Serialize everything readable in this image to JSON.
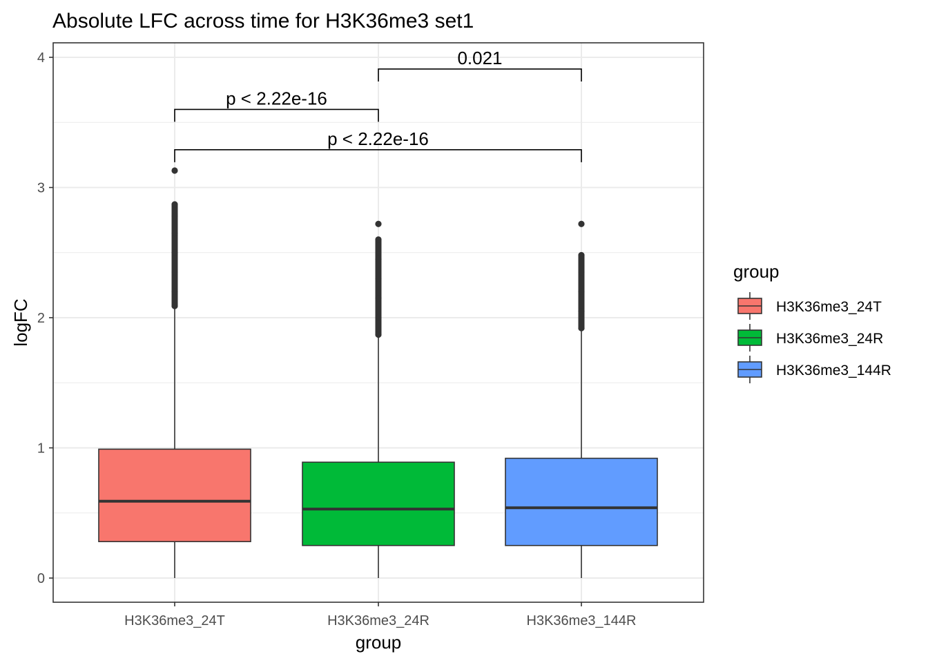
{
  "chart_data": {
    "type": "boxplot",
    "title": "Absolute LFC across time for H3K36me3 set1",
    "xlabel": "group",
    "ylabel": "logFC",
    "ylim": [
      -0.18,
      4.07
    ],
    "yticks": [
      0,
      1,
      2,
      3,
      4
    ],
    "grid": true,
    "legend": {
      "title": "group",
      "position": "right",
      "items": [
        {
          "label": "H3K36me3_24T",
          "color": "#F8766D"
        },
        {
          "label": "H3K36me3_24R",
          "color": "#00BA38"
        },
        {
          "label": "H3K36me3_144R",
          "color": "#619CFF"
        }
      ]
    },
    "categories": [
      "H3K36me3_24T",
      "H3K36me3_24R",
      "H3K36me3_144R"
    ],
    "boxes": [
      {
        "name": "H3K36me3_24T",
        "color": "#F8766D",
        "min": 0.0,
        "q1": 0.28,
        "median": 0.59,
        "q3": 0.99,
        "whisker_high": 2.07,
        "outliers": [
          2.09,
          2.2,
          2.35,
          2.5,
          2.65,
          2.78,
          2.87,
          3.13
        ]
      },
      {
        "name": "H3K36me3_24R",
        "color": "#00BA38",
        "min": 0.0,
        "q1": 0.25,
        "median": 0.53,
        "q3": 0.89,
        "whisker_high": 1.85,
        "outliers": [
          1.87,
          2.0,
          2.15,
          2.3,
          2.45,
          2.6,
          2.72
        ]
      },
      {
        "name": "H3K36me3_144R",
        "color": "#619CFF",
        "min": 0.0,
        "q1": 0.25,
        "median": 0.54,
        "q3": 0.92,
        "whisker_high": 1.9,
        "outliers": [
          1.92,
          2.05,
          2.2,
          2.35,
          2.48,
          2.72
        ]
      }
    ],
    "comparisons": [
      {
        "from": 0,
        "to": 1,
        "y": 3.6,
        "label": "p < 2.22e-16"
      },
      {
        "from": 0,
        "to": 2,
        "y": 3.29,
        "label": "p < 2.22e-16"
      },
      {
        "from": 1,
        "to": 2,
        "y": 3.91,
        "label": "0.021"
      }
    ]
  }
}
